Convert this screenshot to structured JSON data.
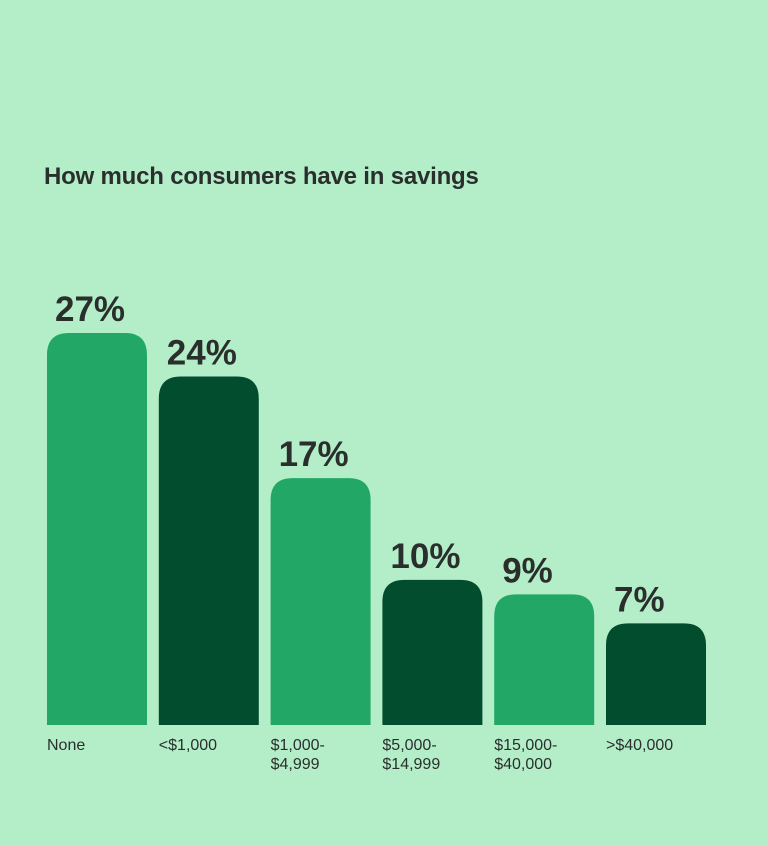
{
  "chart_data": {
    "type": "bar",
    "title": "How much consumers have in savings",
    "xlabel": "",
    "ylabel": "",
    "unit": "%",
    "grid": false,
    "categories": [
      [
        "None"
      ],
      [
        "<$1,000"
      ],
      [
        "$1,000-",
        "$4,999"
      ],
      [
        "$5,000-",
        "$14,999"
      ],
      [
        "$15,000-",
        "$40,000"
      ],
      [
        ">$40,000"
      ]
    ],
    "values": [
      27,
      24,
      17,
      10,
      9,
      7
    ],
    "value_labels": [
      "27%",
      "24%",
      "17%",
      "10%",
      "9%",
      "7%"
    ],
    "ylim": [
      0,
      27
    ],
    "colors": [
      "#22a767",
      "#024d2e",
      "#22a767",
      "#024d2e",
      "#22a767",
      "#024d2e"
    ],
    "background": "#b4eec8"
  }
}
